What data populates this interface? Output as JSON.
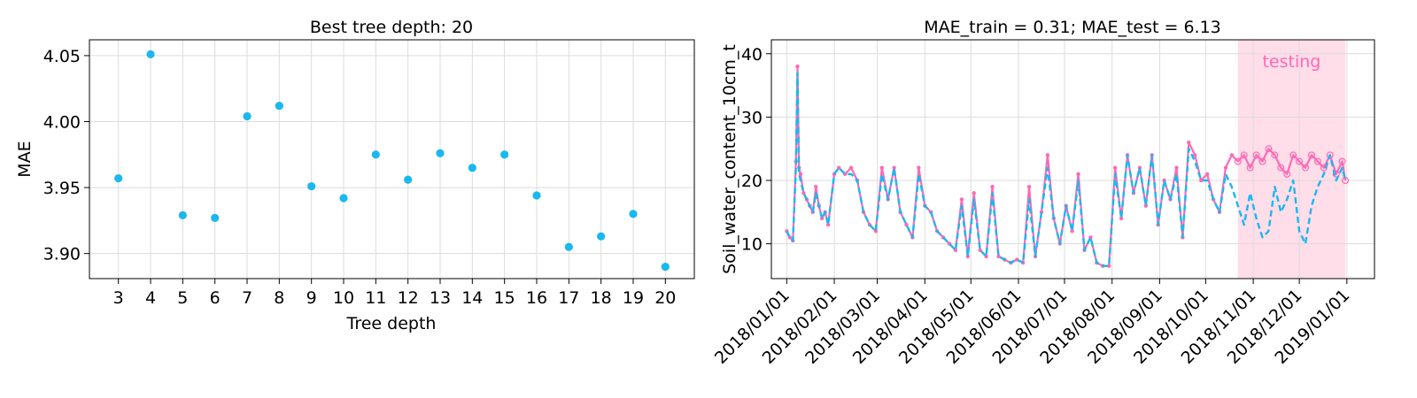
{
  "chart_data": [
    {
      "type": "scatter",
      "title": "Best tree depth: 20",
      "xlabel": "Tree depth",
      "ylabel": "MAE",
      "x_ticks": [
        "3",
        "4",
        "5",
        "6",
        "7",
        "8",
        "9",
        "10",
        "11",
        "12",
        "13",
        "14",
        "15",
        "16",
        "17",
        "18",
        "19",
        "20"
      ],
      "y_ticks": [
        "3.90",
        "3.95",
        "4.00",
        "4.05"
      ],
      "xlim": [
        2.1,
        20.9
      ],
      "ylim": [
        3.881,
        4.062
      ],
      "grid": true,
      "color": "#1ab8f0",
      "series": [
        {
          "x": [
            3,
            4,
            5,
            6,
            7,
            8,
            9,
            10,
            11,
            12,
            13,
            14,
            15,
            16,
            17,
            18,
            19,
            20
          ],
          "values": [
            3.957,
            4.051,
            3.929,
            3.927,
            4.004,
            4.012,
            3.951,
            3.942,
            3.975,
            3.956,
            3.976,
            3.965,
            3.975,
            3.944,
            3.905,
            3.913,
            3.93,
            3.89
          ]
        }
      ]
    },
    {
      "type": "line",
      "title": "MAE_train = 0.31; MAE_test = 6.13",
      "xlabel": "",
      "ylabel": "Soil_water_content_10cm_t",
      "x_ticks": [
        "2018/01/01",
        "2018/02/01",
        "2018/03/01",
        "2018/04/01",
        "2018/05/01",
        "2018/06/01",
        "2018/07/01",
        "2018/08/01",
        "2018/09/01",
        "2018/10/01",
        "2018/11/01",
        "2018/12/01",
        "2019/01/01"
      ],
      "y_ticks": [
        "10",
        "20",
        "30",
        "40"
      ],
      "xlim": [
        "2017-12-22",
        "2019-01-19"
      ],
      "ylim": [
        4.5,
        42.2
      ],
      "grid": true,
      "annotation": "testing",
      "testing_period": [
        "2018-10-22",
        "2018-12-31"
      ],
      "colors": {
        "observed": "#ff69b4",
        "predicted": "#1ab8f0",
        "testing_band": "#ffdde9"
      },
      "series": [
        {
          "role": "observed",
          "x": [
            "2018-01-01",
            "2018-01-03",
            "2018-01-05",
            "2018-01-07",
            "2018-01-08",
            "2018-01-09",
            "2018-01-10",
            "2018-01-12",
            "2018-01-14",
            "2018-01-16",
            "2018-01-18",
            "2018-01-20",
            "2018-01-22",
            "2018-01-24",
            "2018-01-26",
            "2018-01-28",
            "2018-02-01",
            "2018-02-04",
            "2018-02-08",
            "2018-02-12",
            "2018-02-16",
            "2018-02-20",
            "2018-02-24",
            "2018-02-28",
            "2018-03-04",
            "2018-03-08",
            "2018-03-12",
            "2018-03-16",
            "2018-03-20",
            "2018-03-24",
            "2018-03-28",
            "2018-04-01",
            "2018-04-05",
            "2018-04-09",
            "2018-04-13",
            "2018-04-17",
            "2018-04-21",
            "2018-04-25",
            "2018-04-29",
            "2018-05-03",
            "2018-05-07",
            "2018-05-11",
            "2018-05-15",
            "2018-05-19",
            "2018-05-23",
            "2018-05-27",
            "2018-05-31",
            "2018-06-04",
            "2018-06-08",
            "2018-06-12",
            "2018-06-16",
            "2018-06-20",
            "2018-06-24",
            "2018-06-28",
            "2018-07-02",
            "2018-07-06",
            "2018-07-10",
            "2018-07-14",
            "2018-07-18",
            "2018-07-22",
            "2018-07-26",
            "2018-07-30",
            "2018-08-03",
            "2018-08-07",
            "2018-08-11",
            "2018-08-15",
            "2018-08-19",
            "2018-08-23",
            "2018-08-27",
            "2018-08-31",
            "2018-09-04",
            "2018-09-08",
            "2018-09-12",
            "2018-09-16",
            "2018-09-20",
            "2018-09-24",
            "2018-09-28",
            "2018-10-02",
            "2018-10-06",
            "2018-10-10",
            "2018-10-14",
            "2018-10-18",
            "2018-10-22",
            "2018-10-26",
            "2018-10-30",
            "2018-11-03",
            "2018-11-07",
            "2018-11-11",
            "2018-11-15",
            "2018-11-19",
            "2018-11-23",
            "2018-11-27",
            "2018-12-01",
            "2018-12-05",
            "2018-12-09",
            "2018-12-13",
            "2018-12-17",
            "2018-12-21",
            "2018-12-25",
            "2018-12-29",
            "2018-12-31"
          ],
          "values": [
            12,
            11,
            10.5,
            23,
            38,
            22,
            21,
            18,
            17,
            16,
            15,
            19,
            16,
            14,
            15,
            13,
            21,
            22,
            21,
            22,
            20,
            15,
            13,
            12,
            22,
            17,
            22,
            15,
            13,
            11,
            22,
            16,
            15,
            12,
            11,
            10,
            9,
            17,
            8,
            18,
            9,
            8,
            19,
            8,
            7.5,
            7,
            7.5,
            7,
            19,
            8,
            15,
            24,
            14,
            10,
            16,
            12,
            21,
            9,
            11,
            7,
            6.5,
            6.5,
            22,
            14,
            24,
            18,
            22,
            16,
            24,
            13,
            20,
            17,
            22,
            11,
            26,
            24,
            20,
            21,
            17,
            15,
            22,
            24,
            23,
            24,
            22,
            24,
            23,
            25,
            24,
            22,
            21,
            24,
            23,
            22,
            24,
            23,
            22,
            24,
            21,
            23,
            20
          ]
        },
        {
          "role": "predicted",
          "x": [
            "2018-01-01",
            "2018-01-03",
            "2018-01-05",
            "2018-01-07",
            "2018-01-08",
            "2018-01-09",
            "2018-01-10",
            "2018-01-12",
            "2018-01-14",
            "2018-01-16",
            "2018-01-18",
            "2018-01-20",
            "2018-01-22",
            "2018-01-24",
            "2018-01-26",
            "2018-01-28",
            "2018-02-01",
            "2018-02-04",
            "2018-02-08",
            "2018-02-12",
            "2018-02-16",
            "2018-02-20",
            "2018-02-24",
            "2018-02-28",
            "2018-03-04",
            "2018-03-08",
            "2018-03-12",
            "2018-03-16",
            "2018-03-20",
            "2018-03-24",
            "2018-03-28",
            "2018-04-01",
            "2018-04-05",
            "2018-04-09",
            "2018-04-13",
            "2018-04-17",
            "2018-04-21",
            "2018-04-25",
            "2018-04-29",
            "2018-05-03",
            "2018-05-07",
            "2018-05-11",
            "2018-05-15",
            "2018-05-19",
            "2018-05-23",
            "2018-05-27",
            "2018-05-31",
            "2018-06-04",
            "2018-06-08",
            "2018-06-12",
            "2018-06-16",
            "2018-06-20",
            "2018-06-24",
            "2018-06-28",
            "2018-07-02",
            "2018-07-06",
            "2018-07-10",
            "2018-07-14",
            "2018-07-18",
            "2018-07-22",
            "2018-07-26",
            "2018-07-30",
            "2018-08-03",
            "2018-08-07",
            "2018-08-11",
            "2018-08-15",
            "2018-08-19",
            "2018-08-23",
            "2018-08-27",
            "2018-08-31",
            "2018-09-04",
            "2018-09-08",
            "2018-09-12",
            "2018-09-16",
            "2018-09-20",
            "2018-09-24",
            "2018-09-28",
            "2018-10-02",
            "2018-10-06",
            "2018-10-10",
            "2018-10-14",
            "2018-10-18",
            "2018-10-22",
            "2018-10-26",
            "2018-10-30",
            "2018-11-03",
            "2018-11-07",
            "2018-11-11",
            "2018-11-15",
            "2018-11-19",
            "2018-11-23",
            "2018-11-27",
            "2018-12-01",
            "2018-12-05",
            "2018-12-09",
            "2018-12-13",
            "2018-12-17",
            "2018-12-21",
            "2018-12-25",
            "2018-12-29",
            "2018-12-31"
          ],
          "values": [
            12,
            11,
            10.5,
            22,
            37,
            21,
            20,
            18,
            17,
            16,
            15,
            18,
            16,
            14,
            15,
            13,
            21,
            22,
            21,
            21,
            20,
            15,
            13,
            12,
            21,
            17,
            22,
            15,
            13,
            11,
            21,
            16,
            15,
            12,
            11,
            10,
            9,
            16,
            8,
            17,
            9,
            8,
            18,
            8,
            7.5,
            7,
            7.5,
            7,
            17,
            8,
            15,
            22,
            14,
            10,
            16,
            12,
            20,
            9,
            11,
            7,
            6.5,
            6.5,
            21,
            14,
            24,
            18,
            22,
            16,
            24,
            13,
            20,
            17,
            21,
            11,
            25,
            23,
            20,
            20,
            17,
            15,
            21,
            19,
            16,
            13,
            18,
            14,
            11,
            12,
            19,
            15,
            17,
            20,
            12,
            10,
            16,
            19,
            21,
            24,
            20,
            22,
            20
          ]
        }
      ]
    }
  ]
}
